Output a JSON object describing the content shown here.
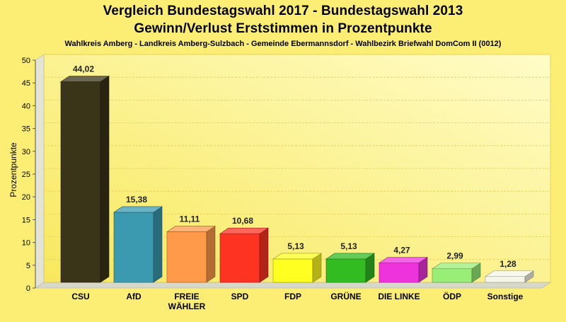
{
  "chart_data": {
    "type": "bar",
    "title_line1": "Vergleich Bundestagswahl 2017 - Bundestagswahl 2013",
    "title_line2": "Gewinn/Verlust Erststimmen in Prozentpunkte",
    "subtitle": "Wahlkreis Amberg - Landkreis Amberg-Sulzbach - Gemeinde Ebermannsdorf - Wahlbezirk Briefwahl DomCom II (0012)",
    "ylabel": "Prozentpunkte",
    "xlabel": "",
    "ylim": [
      0,
      50
    ],
    "yticks": [
      "0",
      "5",
      "10",
      "15",
      "20",
      "25",
      "30",
      "35",
      "40",
      "45",
      "50"
    ],
    "grid": true,
    "categories": [
      "CSU",
      "AfD",
      "FREIE WÄHLER",
      "SPD",
      "FDP",
      "GRÜNE",
      "DIE LINKE",
      "ÖDP",
      "Sonstige"
    ],
    "values": [
      44.02,
      15.38,
      11.11,
      10.68,
      5.13,
      5.13,
      4.27,
      2.99,
      1.28
    ],
    "value_labels": [
      "44,02",
      "15,38",
      "11,11",
      "10,68",
      "5,13",
      "5,13",
      "4,27",
      "2,99",
      "1,28"
    ],
    "colors": [
      "#3a3418",
      "#3b9ab0",
      "#ff9a4a",
      "#ff3322",
      "#ffff22",
      "#33bb22",
      "#ee33dd",
      "#99ee77",
      "#f5f5e8"
    ]
  }
}
